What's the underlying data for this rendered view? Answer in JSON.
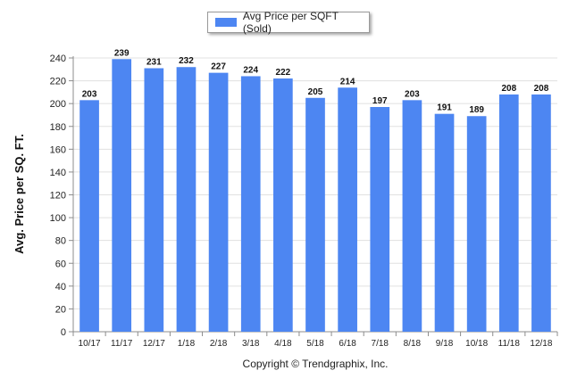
{
  "chart_data": {
    "type": "bar",
    "categories": [
      "10/17",
      "11/17",
      "12/17",
      "1/18",
      "2/18",
      "3/18",
      "4/18",
      "5/18",
      "6/18",
      "7/18",
      "8/18",
      "9/18",
      "10/18",
      "11/18",
      "12/18"
    ],
    "series": [
      {
        "name": "Avg Price per SQFT (Sold)",
        "values": [
          203,
          239,
          231,
          232,
          227,
          224,
          222,
          205,
          214,
          197,
          203,
          191,
          189,
          208,
          208
        ]
      }
    ],
    "ylabel": "Avg. Price per SQ. FT.",
    "xlabel": "",
    "ylim": [
      0,
      240
    ],
    "yticks": [
      0,
      20,
      40,
      60,
      80,
      100,
      120,
      140,
      160,
      180,
      200,
      220,
      240
    ],
    "grid": true,
    "legend_position": "top-center",
    "colors": {
      "bar": "#4d86f2",
      "grid": "#e0e0e0",
      "axis": "#8c8c8c"
    }
  },
  "footer": {
    "copyright": "Copyright © Trendgraphix, Inc."
  }
}
